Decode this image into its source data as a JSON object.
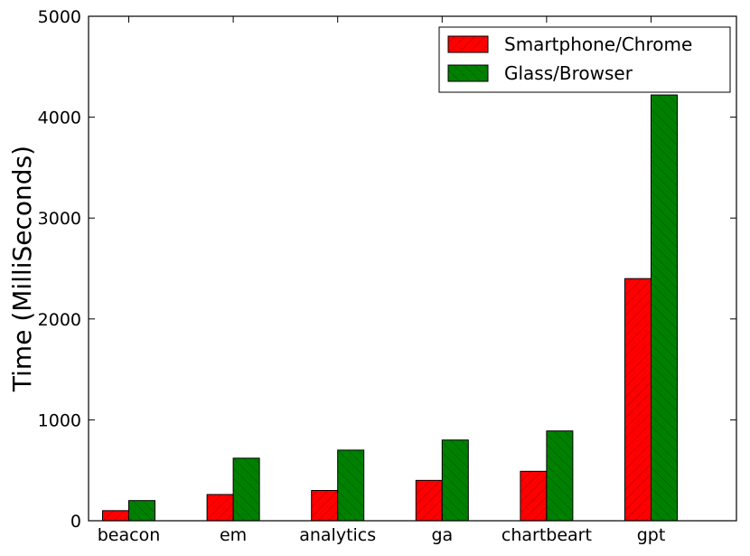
{
  "chart_data": {
    "type": "bar",
    "title": "",
    "xlabel": "",
    "ylabel": "Time (MilliSeconds)",
    "ylim": [
      0,
      5000
    ],
    "yticks": [
      0,
      1000,
      2000,
      3000,
      4000,
      5000
    ],
    "grid": false,
    "legend_position": "top-right",
    "categories": [
      "beacon",
      "em",
      "analytics",
      "ga",
      "chartbeart",
      "gpt"
    ],
    "series": [
      {
        "name": "Smartphone/Chrome",
        "color": "#ff0000",
        "hatch": "diagonal-right",
        "values": [
          100,
          260,
          300,
          400,
          490,
          2400
        ]
      },
      {
        "name": "Glass/Browser",
        "color": "#008000",
        "hatch": "diagonal-left",
        "values": [
          200,
          620,
          700,
          800,
          890,
          4220
        ]
      }
    ]
  }
}
